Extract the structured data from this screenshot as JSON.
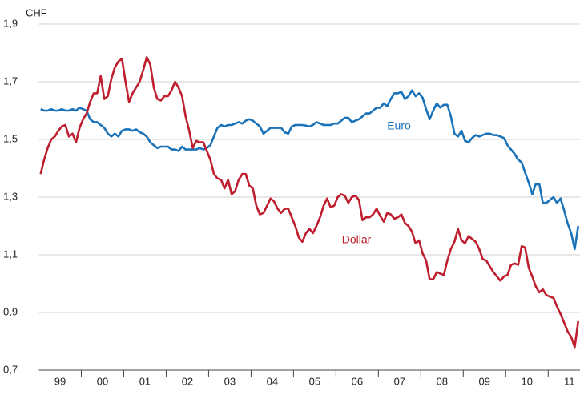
{
  "chart_data": {
    "type": "line",
    "y_label": "CHF",
    "xlim": [
      1999,
      2011.75
    ],
    "xticks": [
      {
        "value": 1999.5,
        "label": "99"
      },
      {
        "value": 2000.5,
        "label": "00"
      },
      {
        "value": 2001.5,
        "label": "01"
      },
      {
        "value": 2002.5,
        "label": "02"
      },
      {
        "value": 2003.5,
        "label": "03"
      },
      {
        "value": 2004.5,
        "label": "04"
      },
      {
        "value": 2005.5,
        "label": "05"
      },
      {
        "value": 2006.5,
        "label": "06"
      },
      {
        "value": 2007.5,
        "label": "07"
      },
      {
        "value": 2008.5,
        "label": "08"
      },
      {
        "value": 2009.5,
        "label": "09"
      },
      {
        "value": 2010.5,
        "label": "10"
      },
      {
        "value": 2011.5,
        "label": "11"
      }
    ],
    "ylim": [
      0.7,
      1.9
    ],
    "yticks": [
      {
        "value": 0.7,
        "label": "0,7"
      },
      {
        "value": 0.9,
        "label": "0,9"
      },
      {
        "value": 1.1,
        "label": "1,1"
      },
      {
        "value": 1.3,
        "label": "1,3"
      },
      {
        "value": 1.5,
        "label": "1,5"
      },
      {
        "value": 1.7,
        "label": "1,7"
      },
      {
        "value": 1.9,
        "label": "1,9"
      }
    ],
    "grid": true,
    "x": [
      1999.042,
      1999.125,
      1999.208,
      1999.292,
      1999.375,
      1999.458,
      1999.542,
      1999.625,
      1999.708,
      1999.792,
      1999.875,
      1999.958,
      2000.042,
      2000.125,
      2000.208,
      2000.292,
      2000.375,
      2000.458,
      2000.542,
      2000.625,
      2000.708,
      2000.792,
      2000.875,
      2000.958,
      2001.042,
      2001.125,
      2001.208,
      2001.292,
      2001.375,
      2001.458,
      2001.542,
      2001.625,
      2001.708,
      2001.792,
      2001.875,
      2001.958,
      2002.042,
      2002.125,
      2002.208,
      2002.292,
      2002.375,
      2002.458,
      2002.542,
      2002.625,
      2002.708,
      2002.792,
      2002.875,
      2002.958,
      2003.042,
      2003.125,
      2003.208,
      2003.292,
      2003.375,
      2003.458,
      2003.542,
      2003.625,
      2003.708,
      2003.792,
      2003.875,
      2003.958,
      2004.042,
      2004.125,
      2004.208,
      2004.292,
      2004.375,
      2004.458,
      2004.542,
      2004.625,
      2004.708,
      2004.792,
      2004.875,
      2004.958,
      2005.042,
      2005.125,
      2005.208,
      2005.292,
      2005.375,
      2005.458,
      2005.542,
      2005.625,
      2005.708,
      2005.792,
      2005.875,
      2005.958,
      2006.042,
      2006.125,
      2006.208,
      2006.292,
      2006.375,
      2006.458,
      2006.542,
      2006.625,
      2006.708,
      2006.792,
      2006.875,
      2006.958,
      2007.042,
      2007.125,
      2007.208,
      2007.292,
      2007.375,
      2007.458,
      2007.542,
      2007.625,
      2007.708,
      2007.792,
      2007.875,
      2007.958,
      2008.042,
      2008.125,
      2008.208,
      2008.292,
      2008.375,
      2008.458,
      2008.542,
      2008.625,
      2008.708,
      2008.792,
      2008.875,
      2008.958,
      2009.042,
      2009.125,
      2009.208,
      2009.292,
      2009.375,
      2009.458,
      2009.542,
      2009.625,
      2009.708,
      2009.792,
      2009.875,
      2009.958,
      2010.042,
      2010.125,
      2010.208,
      2010.292,
      2010.375,
      2010.458,
      2010.542,
      2010.625,
      2010.708,
      2010.792,
      2010.875,
      2010.958,
      2011.042,
      2011.125,
      2011.208,
      2011.292,
      2011.375,
      2011.458,
      2011.542,
      2011.625,
      2011.708
    ],
    "series": [
      {
        "name": "Euro",
        "color": "#1a72b8",
        "values": [
          1.605,
          1.6,
          1.6,
          1.605,
          1.6,
          1.6,
          1.605,
          1.6,
          1.6,
          1.605,
          1.6,
          1.61,
          1.605,
          1.6,
          1.57,
          1.56,
          1.56,
          1.55,
          1.54,
          1.52,
          1.51,
          1.52,
          1.51,
          1.53,
          1.535,
          1.535,
          1.53,
          1.535,
          1.525,
          1.52,
          1.51,
          1.49,
          1.48,
          1.47,
          1.475,
          1.475,
          1.475,
          1.465,
          1.465,
          1.46,
          1.475,
          1.465,
          1.465,
          1.465,
          1.465,
          1.47,
          1.465,
          1.47,
          1.48,
          1.51,
          1.54,
          1.55,
          1.545,
          1.55,
          1.55,
          1.555,
          1.56,
          1.555,
          1.565,
          1.57,
          1.565,
          1.555,
          1.545,
          1.52,
          1.53,
          1.54,
          1.54,
          1.54,
          1.54,
          1.525,
          1.52,
          1.545,
          1.55,
          1.55,
          1.55,
          1.548,
          1.545,
          1.55,
          1.56,
          1.555,
          1.55,
          1.55,
          1.55,
          1.555,
          1.555,
          1.565,
          1.575,
          1.575,
          1.56,
          1.565,
          1.57,
          1.58,
          1.59,
          1.59,
          1.6,
          1.61,
          1.61,
          1.625,
          1.615,
          1.64,
          1.66,
          1.66,
          1.665,
          1.64,
          1.65,
          1.67,
          1.65,
          1.66,
          1.645,
          1.605,
          1.57,
          1.6,
          1.625,
          1.61,
          1.62,
          1.62,
          1.58,
          1.52,
          1.51,
          1.53,
          1.495,
          1.49,
          1.505,
          1.515,
          1.51,
          1.515,
          1.52,
          1.52,
          1.515,
          1.515,
          1.51,
          1.505,
          1.48,
          1.465,
          1.45,
          1.43,
          1.42,
          1.385,
          1.35,
          1.31,
          1.345,
          1.345,
          1.28,
          1.28,
          1.29,
          1.3,
          1.28,
          1.295,
          1.255,
          1.21,
          1.175,
          1.12,
          1.2
        ]
      },
      {
        "name": "Dollar",
        "color": "#be1e2d",
        "values": [
          1.38,
          1.43,
          1.47,
          1.5,
          1.51,
          1.53,
          1.545,
          1.55,
          1.51,
          1.52,
          1.49,
          1.54,
          1.57,
          1.59,
          1.63,
          1.66,
          1.66,
          1.72,
          1.64,
          1.65,
          1.71,
          1.75,
          1.77,
          1.78,
          1.7,
          1.63,
          1.66,
          1.68,
          1.7,
          1.74,
          1.785,
          1.76,
          1.68,
          1.64,
          1.635,
          1.65,
          1.65,
          1.67,
          1.7,
          1.68,
          1.65,
          1.58,
          1.53,
          1.47,
          1.495,
          1.49,
          1.49,
          1.46,
          1.43,
          1.38,
          1.365,
          1.36,
          1.33,
          1.36,
          1.31,
          1.32,
          1.36,
          1.38,
          1.38,
          1.34,
          1.33,
          1.27,
          1.24,
          1.245,
          1.27,
          1.295,
          1.285,
          1.26,
          1.245,
          1.26,
          1.26,
          1.23,
          1.2,
          1.16,
          1.145,
          1.175,
          1.19,
          1.175,
          1.2,
          1.23,
          1.27,
          1.295,
          1.265,
          1.27,
          1.3,
          1.31,
          1.305,
          1.28,
          1.3,
          1.305,
          1.29,
          1.22,
          1.23,
          1.23,
          1.24,
          1.26,
          1.235,
          1.215,
          1.245,
          1.24,
          1.225,
          1.23,
          1.24,
          1.21,
          1.2,
          1.18,
          1.14,
          1.15,
          1.105,
          1.08,
          1.015,
          1.015,
          1.04,
          1.035,
          1.03,
          1.08,
          1.12,
          1.145,
          1.19,
          1.15,
          1.14,
          1.165,
          1.155,
          1.145,
          1.12,
          1.085,
          1.08,
          1.06,
          1.04,
          1.025,
          1.01,
          1.025,
          1.03,
          1.065,
          1.07,
          1.065,
          1.13,
          1.125,
          1.055,
          1.025,
          0.99,
          0.97,
          0.98,
          0.96,
          0.955,
          0.95,
          0.92,
          0.895,
          0.865,
          0.835,
          0.815,
          0.78,
          0.87
        ]
      }
    ]
  }
}
